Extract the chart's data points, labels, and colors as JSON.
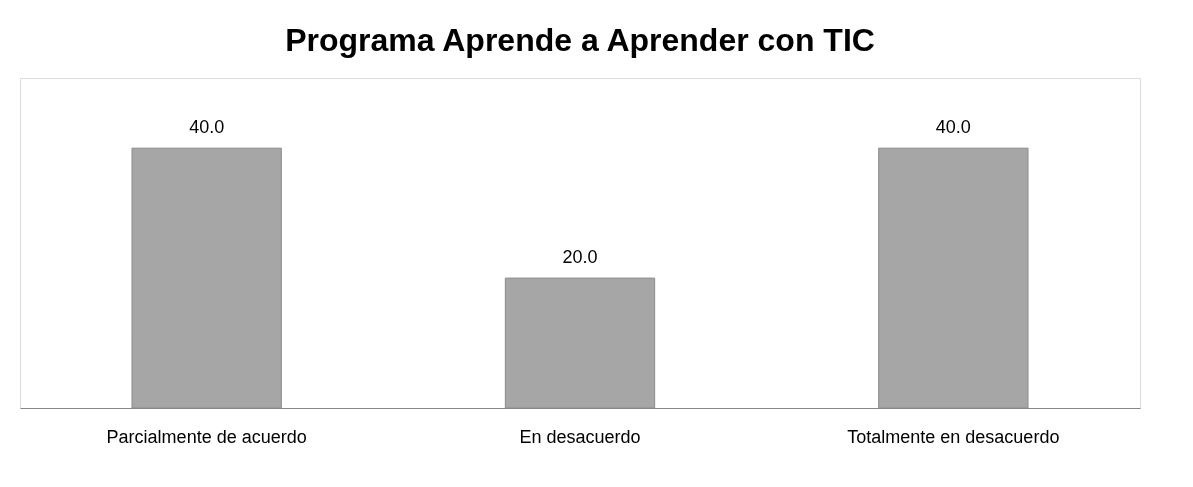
{
  "chart_data": {
    "type": "bar",
    "title": "Programa Aprende a Aprender con TIC",
    "categories": [
      "Parcialmente de acuerdo",
      "En desacuerdo",
      "Totalmente en desacuerdo"
    ],
    "values": [
      40.0,
      20.0,
      40.0
    ],
    "value_labels": [
      "40.0",
      "20.0",
      "40.0"
    ],
    "color": "#a6a6a6"
  }
}
